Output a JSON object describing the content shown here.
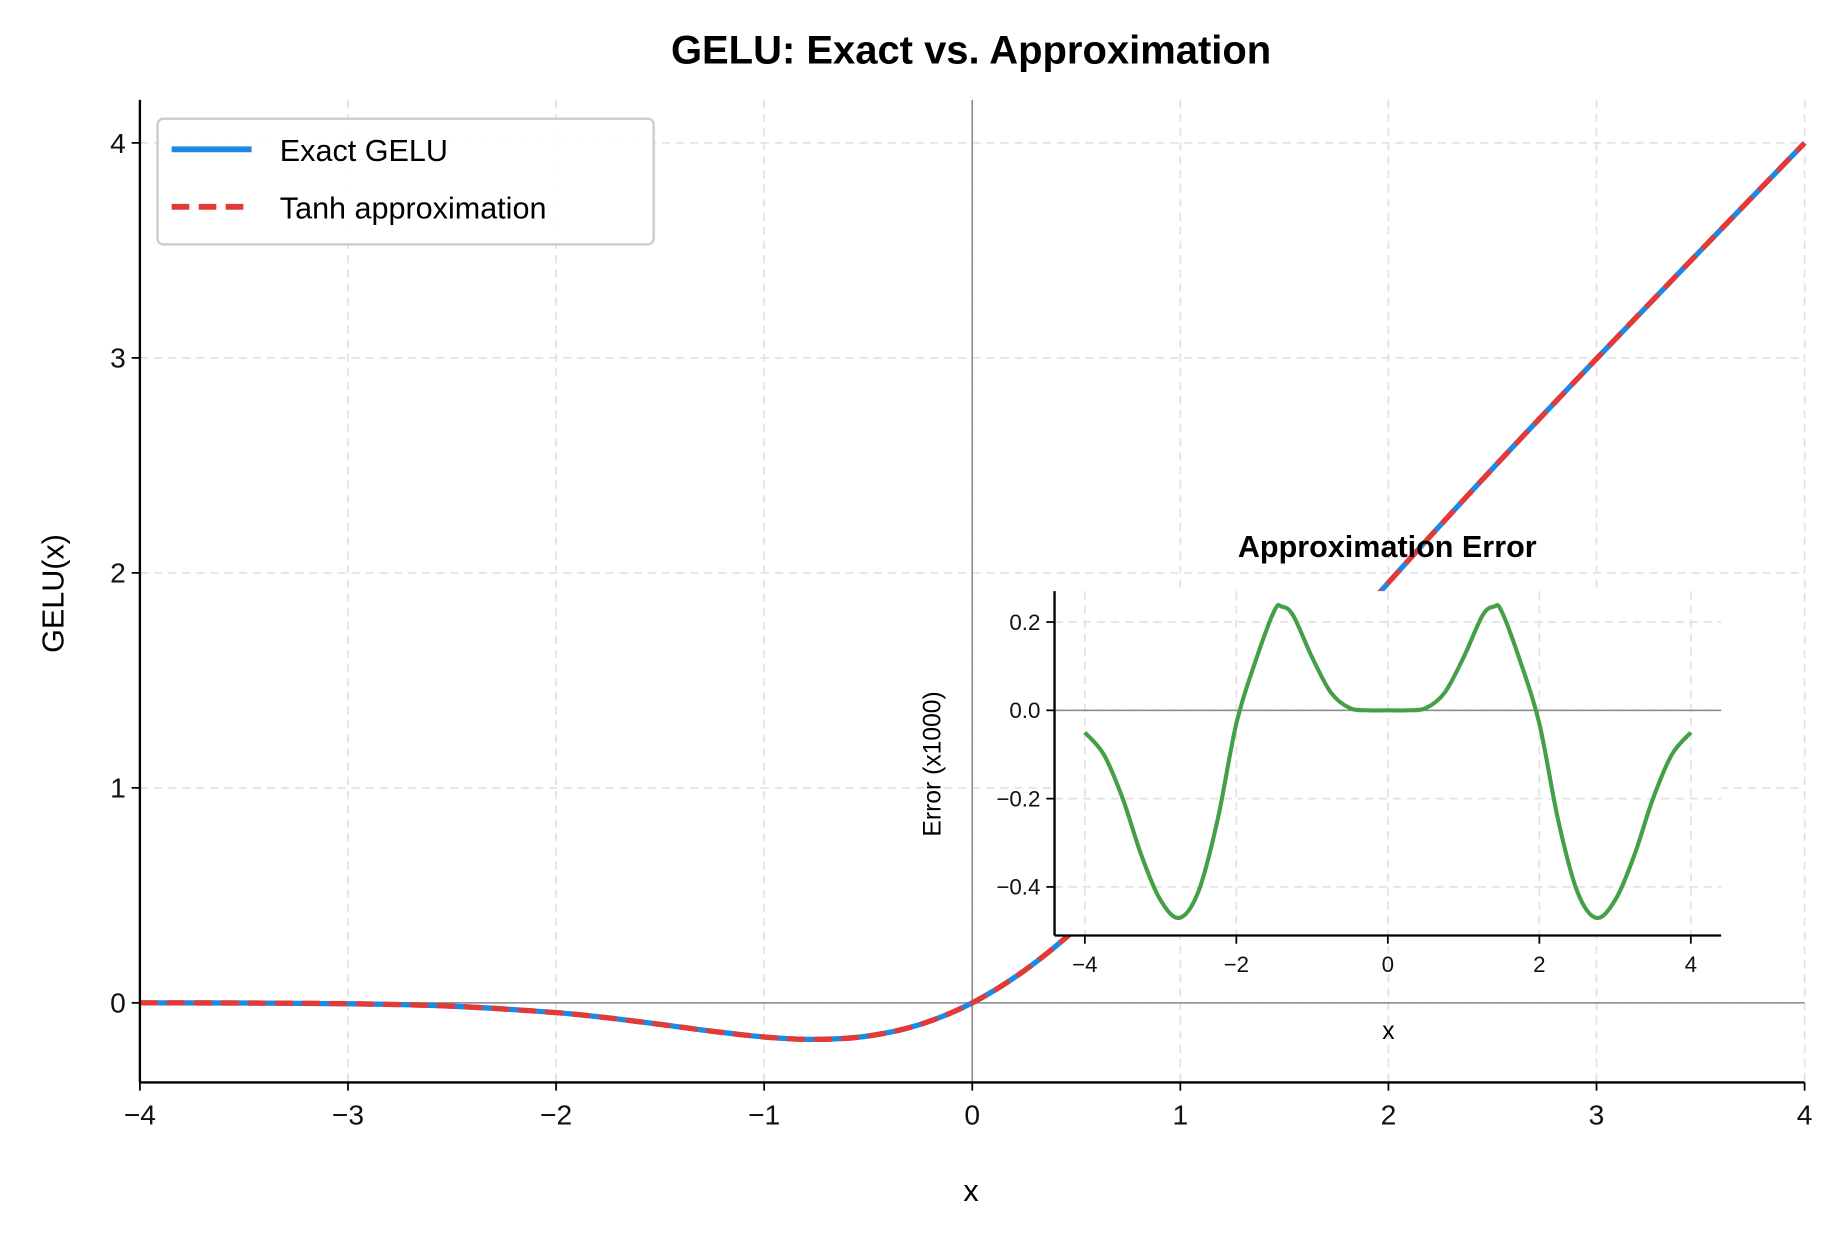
{
  "chart_data": [
    {
      "type": "line",
      "title": "GELU: Exact vs. Approximation",
      "xlabel": "x",
      "ylabel": "GELU(x)",
      "xlim": [
        -4,
        4
      ],
      "ylim": [
        -0.37,
        4.2
      ],
      "xticks": [
        "−4",
        "−3",
        "−2",
        "−1",
        "0",
        "1",
        "2",
        "3",
        "4"
      ],
      "xtick_values": [
        -4,
        -3,
        -2,
        -1,
        0,
        1,
        2,
        3,
        4
      ],
      "yticks": [
        "0",
        "1",
        "2",
        "3",
        "4"
      ],
      "ytick_values": [
        0,
        1,
        2,
        3,
        4
      ],
      "grid": true,
      "legend": "top-left",
      "x": [
        -4,
        -3.5,
        -3,
        -2.5,
        -2,
        -1.75,
        -1.5,
        -1.25,
        -1,
        -0.75,
        -0.5,
        -0.25,
        0,
        0.25,
        0.5,
        0.75,
        1,
        1.25,
        1.5,
        2,
        2.5,
        3,
        3.5,
        4
      ],
      "series": [
        {
          "name": "Exact GELU",
          "color": "#1e88e5",
          "style": "solid",
          "values": [
            -0.0001,
            -0.0008,
            -0.004,
            -0.0155,
            -0.0455,
            -0.0701,
            -0.1002,
            -0.132,
            -0.1587,
            -0.17,
            -0.1543,
            -0.1003,
            0,
            0.1497,
            0.3457,
            0.58,
            0.8413,
            1.118,
            1.3998,
            1.9545,
            2.4845,
            2.996,
            3.4992,
            3.9999
          ]
        },
        {
          "name": "Tanh approximation",
          "color": "#e53935",
          "style": "dashed",
          "values": [
            -0.0001,
            -0.0008,
            -0.004,
            -0.0155,
            -0.0455,
            -0.0701,
            -0.1002,
            -0.132,
            -0.1587,
            -0.17,
            -0.1543,
            -0.1003,
            0,
            0.1497,
            0.3457,
            0.58,
            0.8413,
            1.118,
            1.3998,
            1.9545,
            2.4845,
            2.996,
            3.4992,
            3.9999
          ]
        }
      ]
    },
    {
      "type": "line",
      "title": "Approximation Error",
      "xlabel": "x",
      "ylabel": "Error (x1000)",
      "xlim": [
        -4.4,
        4.4
      ],
      "ylim": [
        -0.51,
        0.27
      ],
      "xticks": [
        "−4",
        "−2",
        "0",
        "2",
        "4"
      ],
      "xtick_values": [
        -4,
        -2,
        0,
        2,
        4
      ],
      "yticks": [
        "0.2",
        "0.0",
        "−0.2",
        "−0.4"
      ],
      "ytick_values": [
        0.2,
        0.0,
        -0.2,
        -0.4
      ],
      "grid": true,
      "x": [
        -4,
        -3.75,
        -3.5,
        -3.25,
        -3,
        -2.75,
        -2.5,
        -2.25,
        -2,
        -1.75,
        -1.5,
        -1.4,
        -1.25,
        -1,
        -0.75,
        -0.5,
        -0.25,
        0,
        0.25,
        0.5,
        0.75,
        1,
        1.25,
        1.4,
        1.5,
        1.75,
        2,
        2.25,
        2.5,
        2.75,
        3,
        3.25,
        3.5,
        3.75,
        4
      ],
      "series": [
        {
          "color": "#43a047",
          "values": [
            -0.05,
            -0.1,
            -0.2,
            -0.33,
            -0.43,
            -0.47,
            -0.41,
            -0.25,
            -0.03,
            0.11,
            0.225,
            0.235,
            0.215,
            0.12,
            0.04,
            0.005,
            0.0,
            0.0,
            0.0,
            0.005,
            0.04,
            0.12,
            0.215,
            0.235,
            0.225,
            0.11,
            -0.03,
            -0.25,
            -0.41,
            -0.47,
            -0.43,
            -0.33,
            -0.2,
            -0.1,
            -0.05
          ]
        }
      ]
    }
  ]
}
